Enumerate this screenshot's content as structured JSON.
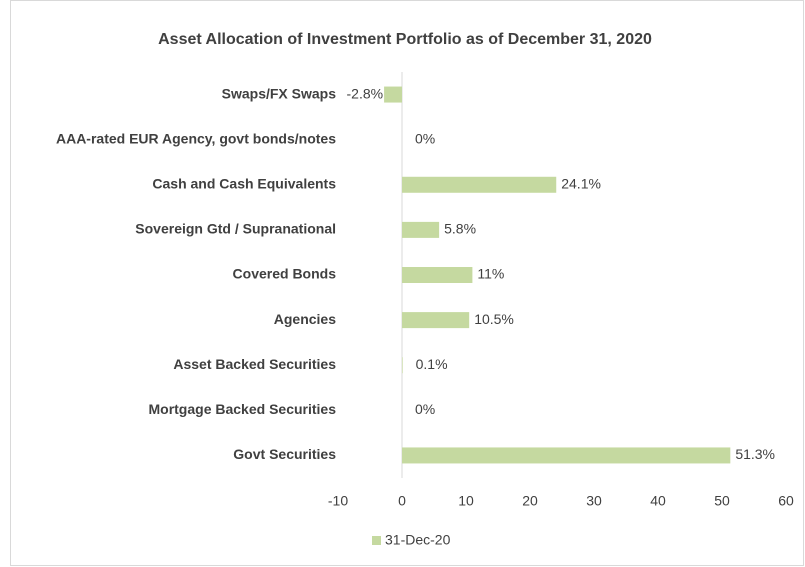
{
  "chart_data": {
    "type": "hbar",
    "title": "Asset Allocation of Investment Portfolio as of December 31, 2020",
    "categories": [
      "Swaps/FX Swaps",
      "AAA-rated EUR Agency, govt bonds/notes",
      "Cash and Cash Equivalents",
      "Sovereign Gtd / Supranational",
      "Covered Bonds",
      "Agencies",
      "Asset Backed Securities",
      "Mortgage Backed Securities",
      "Govt Securities"
    ],
    "series": [
      {
        "name": "31-Dec-20",
        "color": "#c5d9a0",
        "values": [
          -2.8,
          0,
          24.1,
          5.8,
          11,
          10.5,
          0.1,
          0,
          51.3
        ],
        "value_labels": [
          "-2.8%",
          "0%",
          "24.1%",
          "5.8%",
          "11%",
          "10.5%",
          "0.1%",
          "0%",
          "51.3%"
        ]
      }
    ],
    "xlim": [
      -10,
      60
    ],
    "xticks": [
      -10,
      0,
      10,
      20,
      30,
      40,
      50,
      60
    ],
    "legend": "bottom"
  }
}
